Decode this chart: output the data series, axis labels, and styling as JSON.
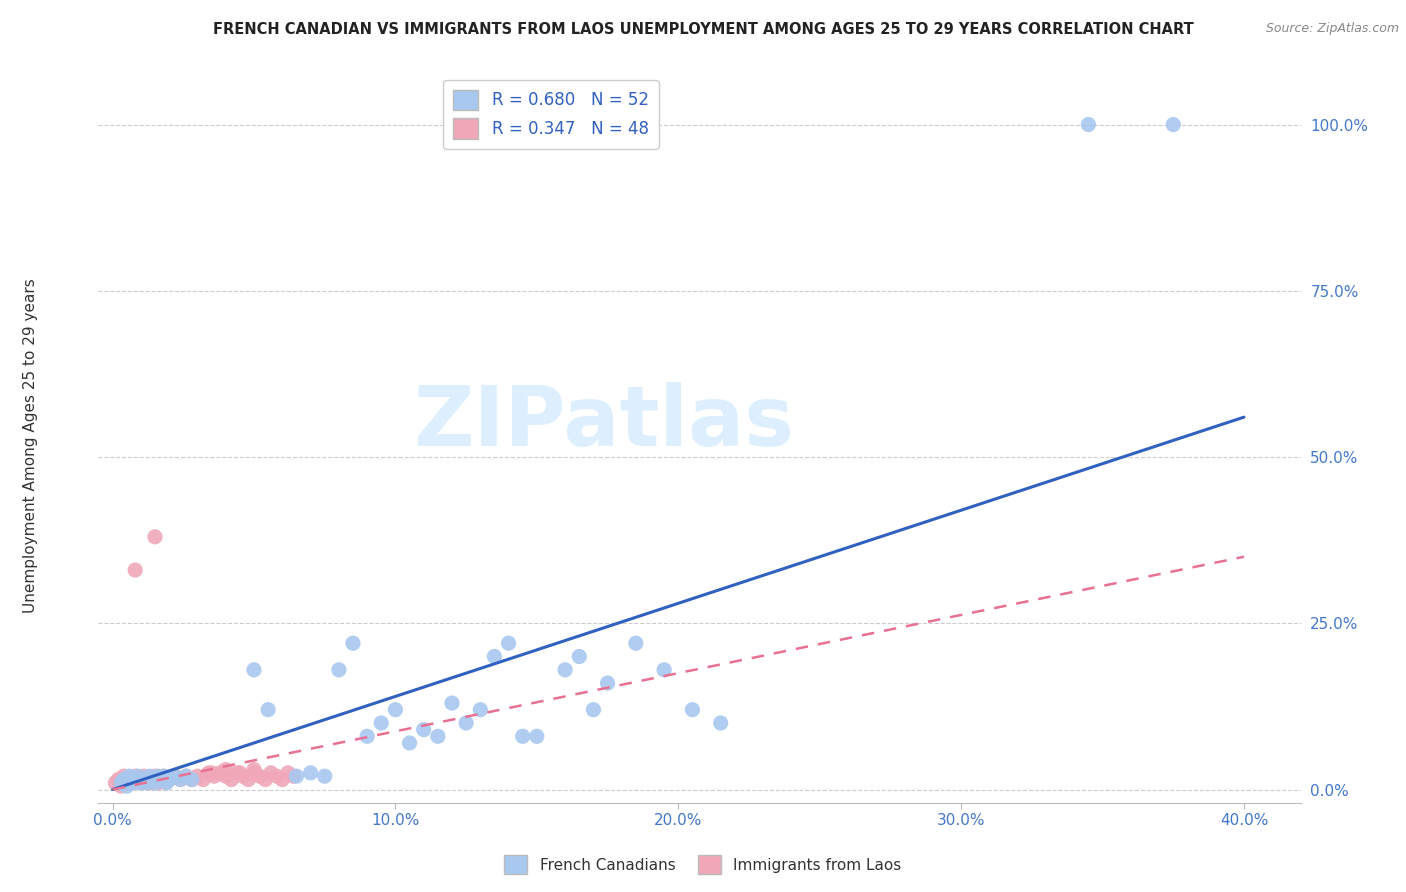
{
  "title": "FRENCH CANADIAN VS IMMIGRANTS FROM LAOS UNEMPLOYMENT AMONG AGES 25 TO 29 YEARS CORRELATION CHART",
  "source": "Source: ZipAtlas.com",
  "xlabel_ticks": [
    "0.0%",
    "10.0%",
    "20.0%",
    "30.0%",
    "40.0%"
  ],
  "xlabel_tick_vals": [
    0.0,
    0.1,
    0.2,
    0.3,
    0.4
  ],
  "ylabel_ticks": [
    "0.0%",
    "25.0%",
    "50.0%",
    "75.0%",
    "100.0%"
  ],
  "ylabel_tick_vals": [
    0.0,
    0.25,
    0.5,
    0.75,
    1.0
  ],
  "ylabel_label": "Unemployment Among Ages 25 to 29 years",
  "legend_blue_r": "R = 0.680",
  "legend_blue_n": "N = 52",
  "legend_pink_r": "R = 0.347",
  "legend_pink_n": "N = 48",
  "blue_color": "#a8c8f0",
  "pink_color": "#f0a8b8",
  "blue_line_color": "#3060c0",
  "pink_line_color": "#e87090",
  "watermark_text": "ZIPatlas",
  "watermark_color": "#ddeeff",
  "blue_scatter": [
    [
      0.003,
      0.01
    ],
    [
      0.004,
      0.015
    ],
    [
      0.005,
      0.005
    ],
    [
      0.006,
      0.02
    ],
    [
      0.007,
      0.01
    ],
    [
      0.008,
      0.015
    ],
    [
      0.009,
      0.02
    ],
    [
      0.01,
      0.01
    ],
    [
      0.011,
      0.015
    ],
    [
      0.012,
      0.01
    ],
    [
      0.013,
      0.02
    ],
    [
      0.014,
      0.015
    ],
    [
      0.015,
      0.01
    ],
    [
      0.016,
      0.02
    ],
    [
      0.017,
      0.015
    ],
    [
      0.018,
      0.02
    ],
    [
      0.019,
      0.01
    ],
    [
      0.02,
      0.015
    ],
    [
      0.022,
      0.02
    ],
    [
      0.024,
      0.015
    ],
    [
      0.026,
      0.02
    ],
    [
      0.028,
      0.015
    ],
    [
      0.05,
      0.18
    ],
    [
      0.055,
      0.12
    ],
    [
      0.065,
      0.02
    ],
    [
      0.07,
      0.025
    ],
    [
      0.075,
      0.02
    ],
    [
      0.08,
      0.18
    ],
    [
      0.085,
      0.22
    ],
    [
      0.09,
      0.08
    ],
    [
      0.095,
      0.1
    ],
    [
      0.1,
      0.12
    ],
    [
      0.105,
      0.07
    ],
    [
      0.11,
      0.09
    ],
    [
      0.115,
      0.08
    ],
    [
      0.12,
      0.13
    ],
    [
      0.125,
      0.1
    ],
    [
      0.13,
      0.12
    ],
    [
      0.135,
      0.2
    ],
    [
      0.14,
      0.22
    ],
    [
      0.145,
      0.08
    ],
    [
      0.15,
      0.08
    ],
    [
      0.16,
      0.18
    ],
    [
      0.165,
      0.2
    ],
    [
      0.17,
      0.12
    ],
    [
      0.175,
      0.16
    ],
    [
      0.185,
      0.22
    ],
    [
      0.195,
      0.18
    ],
    [
      0.205,
      0.12
    ],
    [
      0.215,
      0.1
    ],
    [
      0.345,
      1.0
    ],
    [
      0.375,
      1.0
    ]
  ],
  "pink_scatter": [
    [
      0.001,
      0.01
    ],
    [
      0.002,
      0.015
    ],
    [
      0.003,
      0.005
    ],
    [
      0.004,
      0.02
    ],
    [
      0.005,
      0.01
    ],
    [
      0.006,
      0.015
    ],
    [
      0.007,
      0.01
    ],
    [
      0.008,
      0.02
    ],
    [
      0.009,
      0.015
    ],
    [
      0.01,
      0.01
    ],
    [
      0.011,
      0.02
    ],
    [
      0.012,
      0.015
    ],
    [
      0.013,
      0.01
    ],
    [
      0.014,
      0.015
    ],
    [
      0.015,
      0.02
    ],
    [
      0.016,
      0.01
    ],
    [
      0.017,
      0.015
    ],
    [
      0.018,
      0.02
    ],
    [
      0.019,
      0.01
    ],
    [
      0.02,
      0.015
    ],
    [
      0.022,
      0.02
    ],
    [
      0.024,
      0.015
    ],
    [
      0.026,
      0.02
    ],
    [
      0.028,
      0.015
    ],
    [
      0.03,
      0.02
    ],
    [
      0.032,
      0.015
    ],
    [
      0.034,
      0.025
    ],
    [
      0.036,
      0.02
    ],
    [
      0.038,
      0.025
    ],
    [
      0.04,
      0.02
    ],
    [
      0.042,
      0.015
    ],
    [
      0.044,
      0.025
    ],
    [
      0.046,
      0.02
    ],
    [
      0.048,
      0.015
    ],
    [
      0.05,
      0.025
    ],
    [
      0.052,
      0.02
    ],
    [
      0.054,
      0.015
    ],
    [
      0.056,
      0.025
    ],
    [
      0.058,
      0.02
    ],
    [
      0.06,
      0.015
    ],
    [
      0.062,
      0.025
    ],
    [
      0.064,
      0.02
    ],
    [
      0.015,
      0.38
    ],
    [
      0.008,
      0.33
    ],
    [
      0.035,
      0.025
    ],
    [
      0.04,
      0.03
    ],
    [
      0.045,
      0.025
    ],
    [
      0.05,
      0.03
    ]
  ],
  "blue_line_x": [
    0.0,
    0.4
  ],
  "blue_line_y": [
    0.0,
    0.56
  ],
  "pink_line_x": [
    0.0,
    0.4
  ],
  "pink_line_y": [
    0.0,
    0.35
  ],
  "xlim": [
    -0.005,
    0.42
  ],
  "ylim": [
    -0.02,
    1.08
  ],
  "tick_label_color": "#4477cc",
  "grid_color": "#cccccc",
  "title_color": "#222222",
  "source_color": "#888888",
  "ylabel_color": "#333333"
}
